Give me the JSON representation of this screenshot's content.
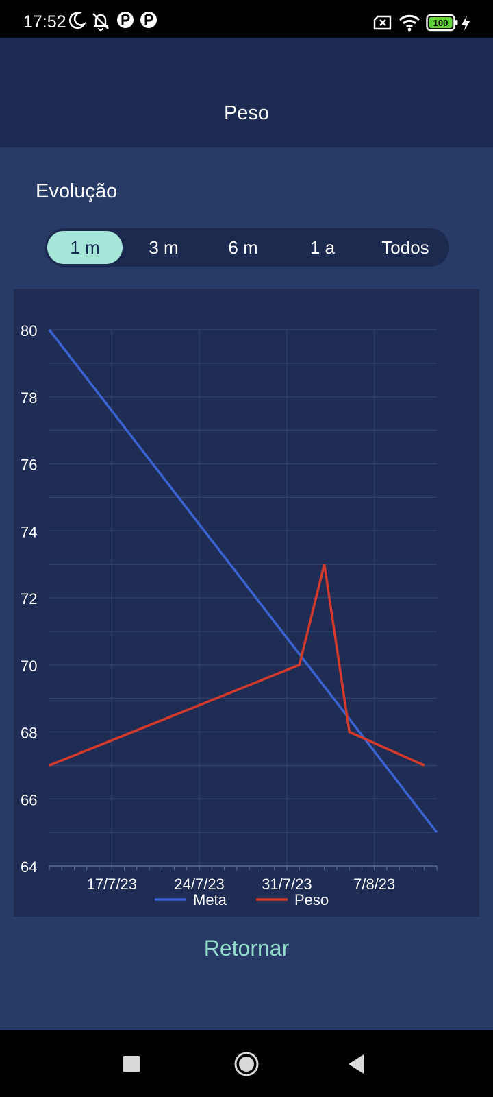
{
  "status_bar": {
    "time": "17:52",
    "icons": [
      "moon-icon",
      "bell-off-icon",
      "app-notification-icon",
      "app-notification-icon",
      "no-sim-icon",
      "wifi-icon",
      "battery-icon",
      "charging-icon"
    ],
    "battery_level": "100"
  },
  "header": {
    "title": "Peso"
  },
  "section": {
    "title": "Evolução"
  },
  "range_tabs": [
    {
      "label": "1 m",
      "active": true
    },
    {
      "label": "3 m",
      "active": false
    },
    {
      "label": "6 m",
      "active": false
    },
    {
      "label": "1 a",
      "active": false
    },
    {
      "label": "Todos",
      "active": false
    }
  ],
  "chart_data": {
    "type": "line",
    "x_ticks": [
      "17/7/23",
      "24/7/23",
      "31/7/23",
      "7/8/23"
    ],
    "ylim": [
      64,
      80
    ],
    "y_ticks": [
      "64",
      "66",
      "68",
      "70",
      "72",
      "74",
      "76",
      "78",
      "80"
    ],
    "grid": true,
    "legend": "bottom",
    "series": [
      {
        "name": "Meta",
        "color": "#3a63d0",
        "points": [
          {
            "x": "12/7/23",
            "y": 80
          },
          {
            "x": "12/8/23",
            "y": 65
          }
        ]
      },
      {
        "name": "Peso",
        "color": "#d43a2c",
        "points": [
          {
            "x": "12/7/23",
            "y": 67
          },
          {
            "x": "1/8/23",
            "y": 70
          },
          {
            "x": "3/8/23",
            "y": 73
          },
          {
            "x": "5/8/23",
            "y": 68
          },
          {
            "x": "11/8/23",
            "y": 67
          }
        ]
      }
    ]
  },
  "footer": {
    "back_label": "Retornar"
  },
  "nav_bar": {
    "buttons": [
      "recent-apps-icon",
      "home-icon",
      "back-icon"
    ]
  },
  "colors": {
    "header_bg": "#1e2b52",
    "main_bg": "#283a66",
    "accent": "#a5e6d8",
    "link": "#93dccb"
  }
}
